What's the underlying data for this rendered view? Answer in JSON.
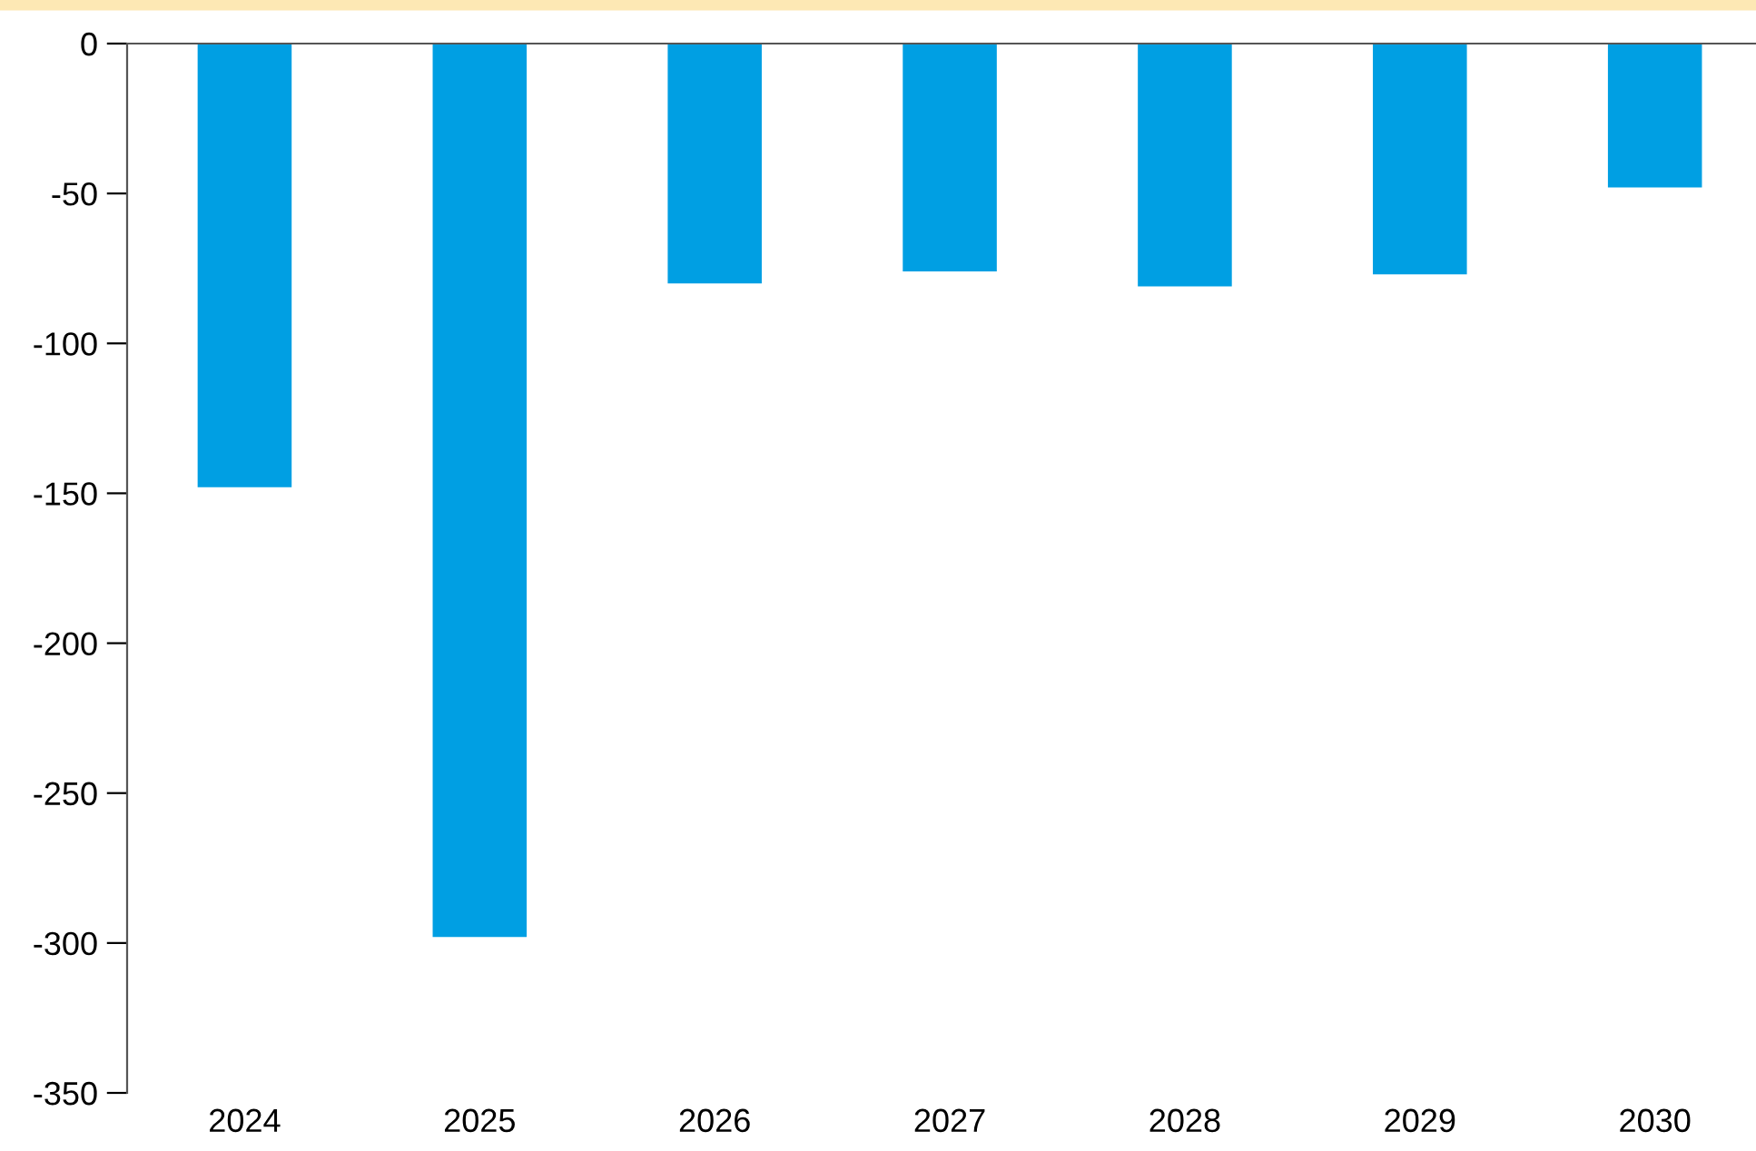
{
  "chart_data": {
    "type": "bar",
    "categories": [
      "2024",
      "2025",
      "2026",
      "2027",
      "2028",
      "2029",
      "2030"
    ],
    "values": [
      -148,
      -298,
      -80,
      -76,
      -81,
      -77,
      -48
    ],
    "color": "#009fe3",
    "ylim": [
      -350,
      0
    ],
    "yticks": [
      -350,
      -300,
      -250,
      -200,
      -150,
      -100,
      -50,
      0
    ],
    "grid": false,
    "legend": false
  }
}
